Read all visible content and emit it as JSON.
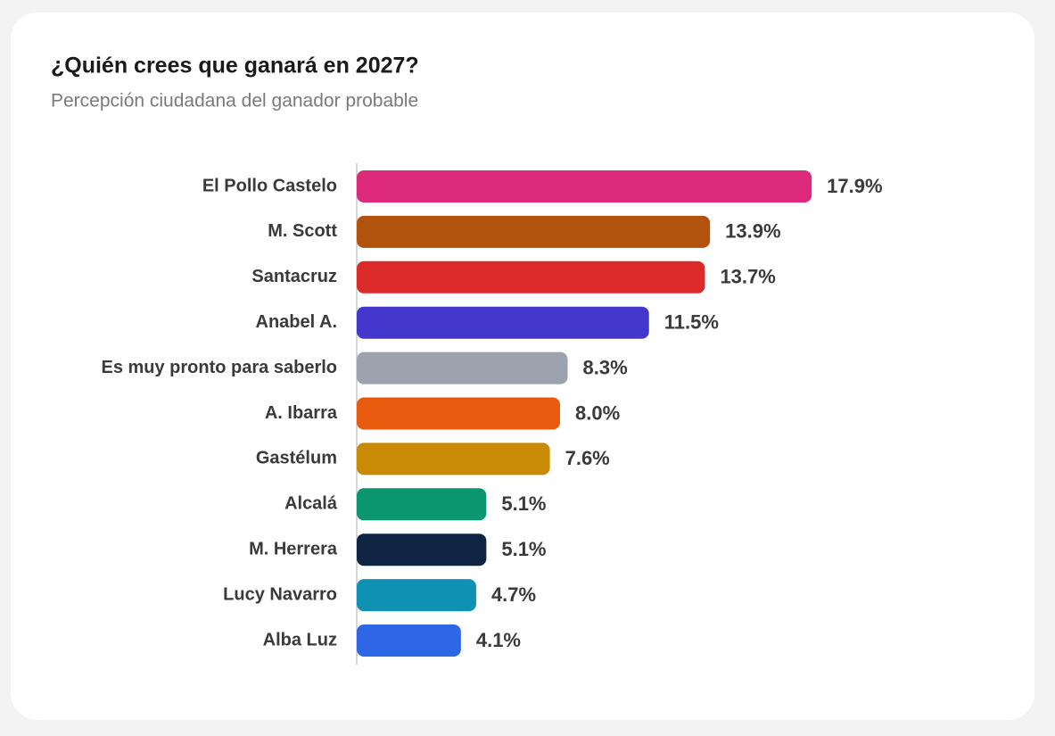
{
  "chart_data": {
    "type": "bar",
    "orientation": "horizontal",
    "title": "¿Quién crees que ganará en 2027?",
    "subtitle": "Percepción ciudadana del ganador probable",
    "categories": [
      "El Pollo Castelo",
      "M. Scott",
      "Santacruz",
      "Anabel A.",
      "Es muy pronto para saberlo",
      "A. Ibarra",
      "Gastélum",
      "Alcalá",
      "M. Herrera",
      "Lucy Navarro",
      "Alba Luz"
    ],
    "values": [
      17.9,
      13.9,
      13.7,
      11.5,
      8.3,
      8.0,
      7.6,
      5.1,
      5.1,
      4.7,
      4.1
    ],
    "value_labels": [
      "17.9%",
      "13.9%",
      "13.7%",
      "11.5%",
      "8.3%",
      "8.0%",
      "7.6%",
      "5.1%",
      "5.1%",
      "4.7%",
      "4.1%"
    ],
    "colors": [
      "#de2a7b",
      "#b1530c",
      "#dc2a2a",
      "#4438cc",
      "#9ca3af",
      "#e85b0f",
      "#c98a05",
      "#0b9670",
      "#0f2443",
      "#0e91b3",
      "#2d67e6"
    ]
  }
}
